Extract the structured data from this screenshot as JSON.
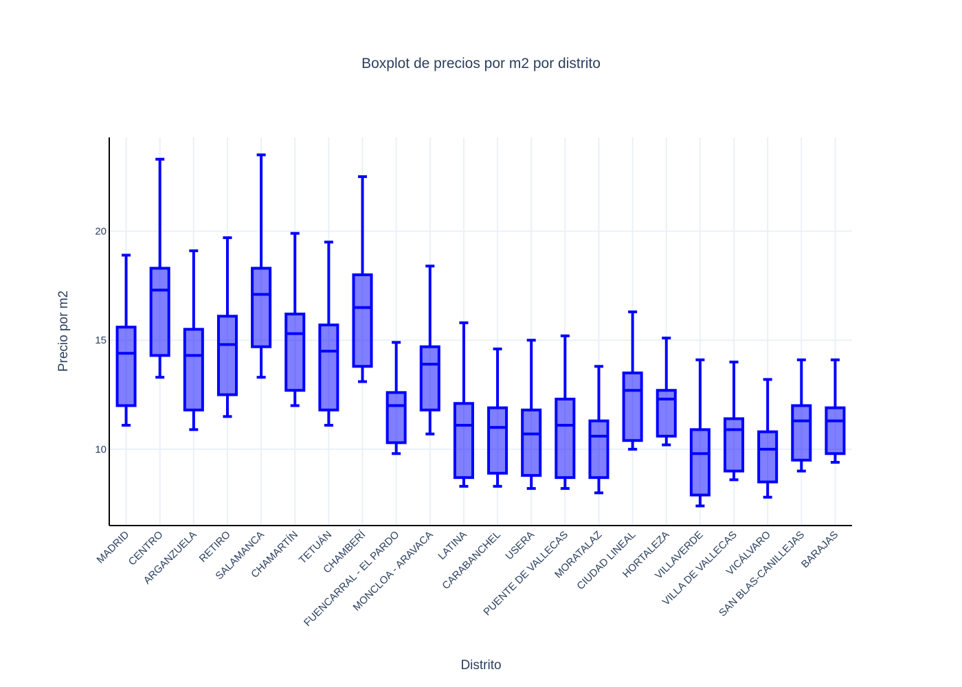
{
  "chart_data": {
    "type": "box",
    "title": "Boxplot de precios por m2 por distrito",
    "xlabel": "Distrito",
    "ylabel": "Precio por m2",
    "ylim": [
      6.5,
      24.3
    ],
    "yticks": [
      10,
      15,
      20
    ],
    "grid": true,
    "legend": "none",
    "color": "#0000ff",
    "fill": "rgba(0,0,255,0.5)",
    "categories": [
      "MADRID",
      "CENTRO",
      "ARGANZUELA",
      "RETIRO",
      "SALAMANCA",
      "CHAMARTÍN",
      "TETUÁN",
      "CHAMBERÍ",
      "FUENCARRAL - EL PARDO",
      "MONCLOA - ARAVACA",
      "LATINA",
      "CARABANCHEL",
      "USERA",
      "PUENTE DE VALLECAS",
      "MORATALAZ",
      "CIUDAD LINEAL",
      "HORTALEZA",
      "VILLAVERDE",
      "VILLA DE VALLECAS",
      "VICÁLVARO",
      "SAN BLAS-CANILLEJAS",
      "BARAJAS"
    ],
    "boxes": [
      {
        "min": 11.1,
        "q1": 12.0,
        "median": 14.4,
        "q3": 15.6,
        "max": 18.9
      },
      {
        "min": 13.3,
        "q1": 14.3,
        "median": 17.3,
        "q3": 18.3,
        "max": 23.3
      },
      {
        "min": 10.9,
        "q1": 11.8,
        "median": 14.3,
        "q3": 15.5,
        "max": 19.1
      },
      {
        "min": 11.5,
        "q1": 12.5,
        "median": 14.8,
        "q3": 16.1,
        "max": 19.7
      },
      {
        "min": 13.3,
        "q1": 14.7,
        "median": 17.1,
        "q3": 18.3,
        "max": 23.5
      },
      {
        "min": 12.0,
        "q1": 12.7,
        "median": 15.3,
        "q3": 16.2,
        "max": 19.9
      },
      {
        "min": 11.1,
        "q1": 11.8,
        "median": 14.5,
        "q3": 15.7,
        "max": 19.5
      },
      {
        "min": 13.1,
        "q1": 13.8,
        "median": 16.5,
        "q3": 18.0,
        "max": 22.5
      },
      {
        "min": 9.8,
        "q1": 10.3,
        "median": 12.0,
        "q3": 12.6,
        "max": 14.9
      },
      {
        "min": 10.7,
        "q1": 11.8,
        "median": 13.9,
        "q3": 14.7,
        "max": 18.4
      },
      {
        "min": 8.3,
        "q1": 8.7,
        "median": 11.1,
        "q3": 12.1,
        "max": 15.8
      },
      {
        "min": 8.3,
        "q1": 8.9,
        "median": 11.0,
        "q3": 11.9,
        "max": 14.6
      },
      {
        "min": 8.2,
        "q1": 8.8,
        "median": 10.7,
        "q3": 11.8,
        "max": 15.0
      },
      {
        "min": 8.2,
        "q1": 8.7,
        "median": 11.1,
        "q3": 12.3,
        "max": 15.2
      },
      {
        "min": 8.0,
        "q1": 8.7,
        "median": 10.6,
        "q3": 11.3,
        "max": 13.8
      },
      {
        "min": 10.0,
        "q1": 10.4,
        "median": 12.7,
        "q3": 13.5,
        "max": 16.3
      },
      {
        "min": 10.2,
        "q1": 10.6,
        "median": 12.3,
        "q3": 12.7,
        "max": 15.1
      },
      {
        "min": 7.4,
        "q1": 7.9,
        "median": 9.8,
        "q3": 10.9,
        "max": 14.1
      },
      {
        "min": 8.6,
        "q1": 9.0,
        "median": 10.9,
        "q3": 11.4,
        "max": 14.0
      },
      {
        "min": 7.8,
        "q1": 8.5,
        "median": 10.0,
        "q3": 10.8,
        "max": 13.2
      },
      {
        "min": 9.0,
        "q1": 9.5,
        "median": 11.3,
        "q3": 12.0,
        "max": 14.1
      },
      {
        "min": 9.4,
        "q1": 9.8,
        "median": 11.3,
        "q3": 11.9,
        "max": 14.1
      }
    ]
  }
}
